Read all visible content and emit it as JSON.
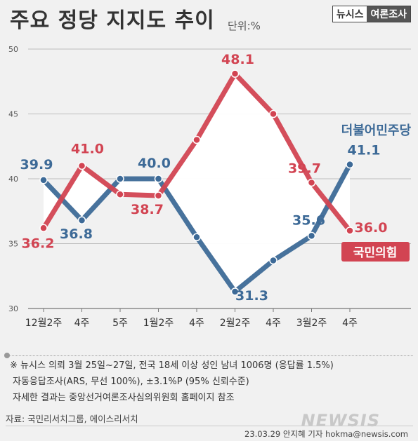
{
  "title": "주요 정당 지지도 추이",
  "unit": "단위:%",
  "brand": {
    "left": "뉴시스",
    "right": "여론조사"
  },
  "chart_data": {
    "type": "line",
    "categories": [
      "12월2주",
      "4주",
      "5주",
      "1월2주",
      "4주",
      "2월2주",
      "4주",
      "3월2주",
      "4주"
    ],
    "ylim": [
      30,
      50
    ],
    "yticks": [
      30,
      35,
      40,
      45,
      50
    ],
    "grid": true,
    "series": [
      {
        "name": "더불어민주당",
        "color": "#3d6a97",
        "values": [
          39.9,
          36.8,
          40.0,
          40.0,
          35.5,
          31.3,
          33.7,
          35.6,
          41.1
        ],
        "labels": [
          "39.9",
          "36.8",
          null,
          "40.0",
          null,
          "31.3",
          null,
          "35.6",
          "41.1"
        ]
      },
      {
        "name": "국민의힘",
        "color": "#d24452",
        "values": [
          36.2,
          41.0,
          38.8,
          38.7,
          43.0,
          48.1,
          45.0,
          39.7,
          36.0
        ],
        "labels": [
          "36.2",
          "41.0",
          null,
          "38.7",
          null,
          "48.1",
          null,
          "39.7",
          "36.0"
        ]
      }
    ]
  },
  "notes": [
    "※ 뉴시스 의뢰 3월 25일~27일, 전국 18세 이상 성인 남녀 1006명 (응답률 1.5%)",
    "자동응답조사(ARS, 무선 100%), ±3.1%P (95% 신뢰수준)",
    "자세한 결과는 중앙선거여론조사심의위원회 홈페이지 참조"
  ],
  "source": "자료: 국민리서치그룹, 에이스리서치",
  "credit": "23.03.29 안지혜 기자 hokma@newsis.com",
  "watermark": "NEWSIS"
}
